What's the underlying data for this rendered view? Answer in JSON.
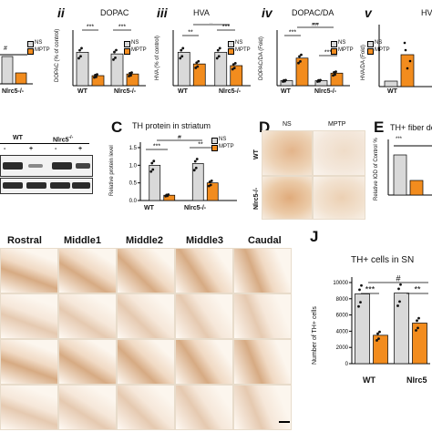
{
  "colors": {
    "ns": "#d9d9d9",
    "mptp": "#f28c1e",
    "stain": "#b5651d"
  },
  "panels": {
    "i": {
      "letter_suffix": "#",
      "group2": "Nlrc5-/-"
    },
    "ii": {
      "roman": "ii",
      "title": "DOPAC",
      "ylabel": "DOPAC (% of control)",
      "groups": [
        "WT",
        "Nlrc5-/-"
      ],
      "sig": [
        "***",
        "***"
      ]
    },
    "iii": {
      "roman": "iii",
      "title": "HVA",
      "ylabel": "HVA (% of control)",
      "groups": [
        "WT",
        "Nlrc5-/-"
      ],
      "sig": [
        "**",
        "***",
        "#"
      ]
    },
    "iv": {
      "roman": "iv",
      "title": "DOPAC/DA",
      "ylabel": "DOPAC/DA (Fold)",
      "groups": [
        "WT",
        "Nlrc5-/-"
      ],
      "sig": [
        "***",
        "##",
        "***"
      ]
    },
    "v": {
      "roman": "v",
      "title": "HV",
      "ylabel": "HVA/DA (Fold)",
      "groups": [
        "WT"
      ]
    }
  },
  "legend": {
    "ns": "NS",
    "mptp": "MPTP"
  },
  "blot": {
    "wt": "WT",
    "ko": "Nlrc5",
    "ko_sup": "-/-",
    "minus": "-",
    "plus": "+"
  },
  "panelC": {
    "letter": "C",
    "title": "TH protein in striatum",
    "ylabel": "Relative protein level",
    "groups": [
      "WT",
      "Nlrc5-/-"
    ],
    "sig": [
      "***",
      "**",
      "#"
    ],
    "yticks": [
      "0.0",
      "0.5",
      "1.0",
      "1.5"
    ]
  },
  "panelD": {
    "letter": "D",
    "cols": [
      "NS",
      "MPTP"
    ],
    "rows": [
      "WT",
      "Nlrc5-/-"
    ]
  },
  "panelE": {
    "letter": "E",
    "title": "TH+ fiber der",
    "ylabel": "Relative IOD of Control %",
    "sig": [
      "***"
    ]
  },
  "sections": {
    "cols": [
      "Rostral",
      "Middle1",
      "Middle2",
      "Middle3",
      "Caudal"
    ]
  },
  "panelJ": {
    "letter": "J",
    "title": "TH+ cells in SN",
    "ylabel": "Number of TH+ cells",
    "groups": [
      "WT",
      "Nlrc5"
    ],
    "sig": [
      "***",
      "#",
      "**"
    ],
    "yticks": [
      "0",
      "2000",
      "4000",
      "6000",
      "8000",
      "10000"
    ]
  },
  "chart_data": [
    {
      "type": "bar",
      "title": "DOPAC",
      "ylabel": "DOPAC (% of control)",
      "categories": [
        "WT",
        "Nlrc5-/-"
      ],
      "series": [
        {
          "name": "NS",
          "values": [
            100,
            95
          ]
        },
        {
          "name": "MPTP",
          "values": [
            30,
            35
          ]
        }
      ],
      "ylim": [
        0,
        150
      ]
    },
    {
      "type": "bar",
      "title": "HVA",
      "ylabel": "HVA (% of control)",
      "categories": [
        "WT",
        "Nlrc5-/-"
      ],
      "series": [
        {
          "name": "NS",
          "values": [
            100,
            100
          ]
        },
        {
          "name": "MPTP",
          "values": [
            65,
            60
          ]
        }
      ],
      "ylim": [
        0,
        150
      ]
    },
    {
      "type": "bar",
      "title": "DOPAC/DA",
      "ylabel": "DOPAC/DA (Fold)",
      "categories": [
        "WT",
        "Nlrc5-/-"
      ],
      "series": [
        {
          "name": "NS",
          "values": [
            1.0,
            1.0
          ]
        },
        {
          "name": "MPTP",
          "values": [
            5.5,
            2.5
          ]
        }
      ],
      "ylim": [
        0,
        10
      ]
    },
    {
      "type": "bar",
      "title": "TH protein in striatum",
      "ylabel": "Relative protein level",
      "categories": [
        "WT",
        "Nlrc5-/-"
      ],
      "series": [
        {
          "name": "NS",
          "values": [
            1.0,
            1.05
          ]
        },
        {
          "name": "MPTP",
          "values": [
            0.15,
            0.5
          ]
        }
      ],
      "ylim": [
        0,
        1.5
      ]
    },
    {
      "type": "bar",
      "title": "TH+ cells in SN",
      "ylabel": "Number of TH+ cells",
      "categories": [
        "WT",
        "Nlrc5"
      ],
      "series": [
        {
          "name": "NS",
          "values": [
            8600,
            8700
          ]
        },
        {
          "name": "MPTP",
          "values": [
            3500,
            5000
          ]
        }
      ],
      "ylim": [
        0,
        10000
      ]
    }
  ]
}
